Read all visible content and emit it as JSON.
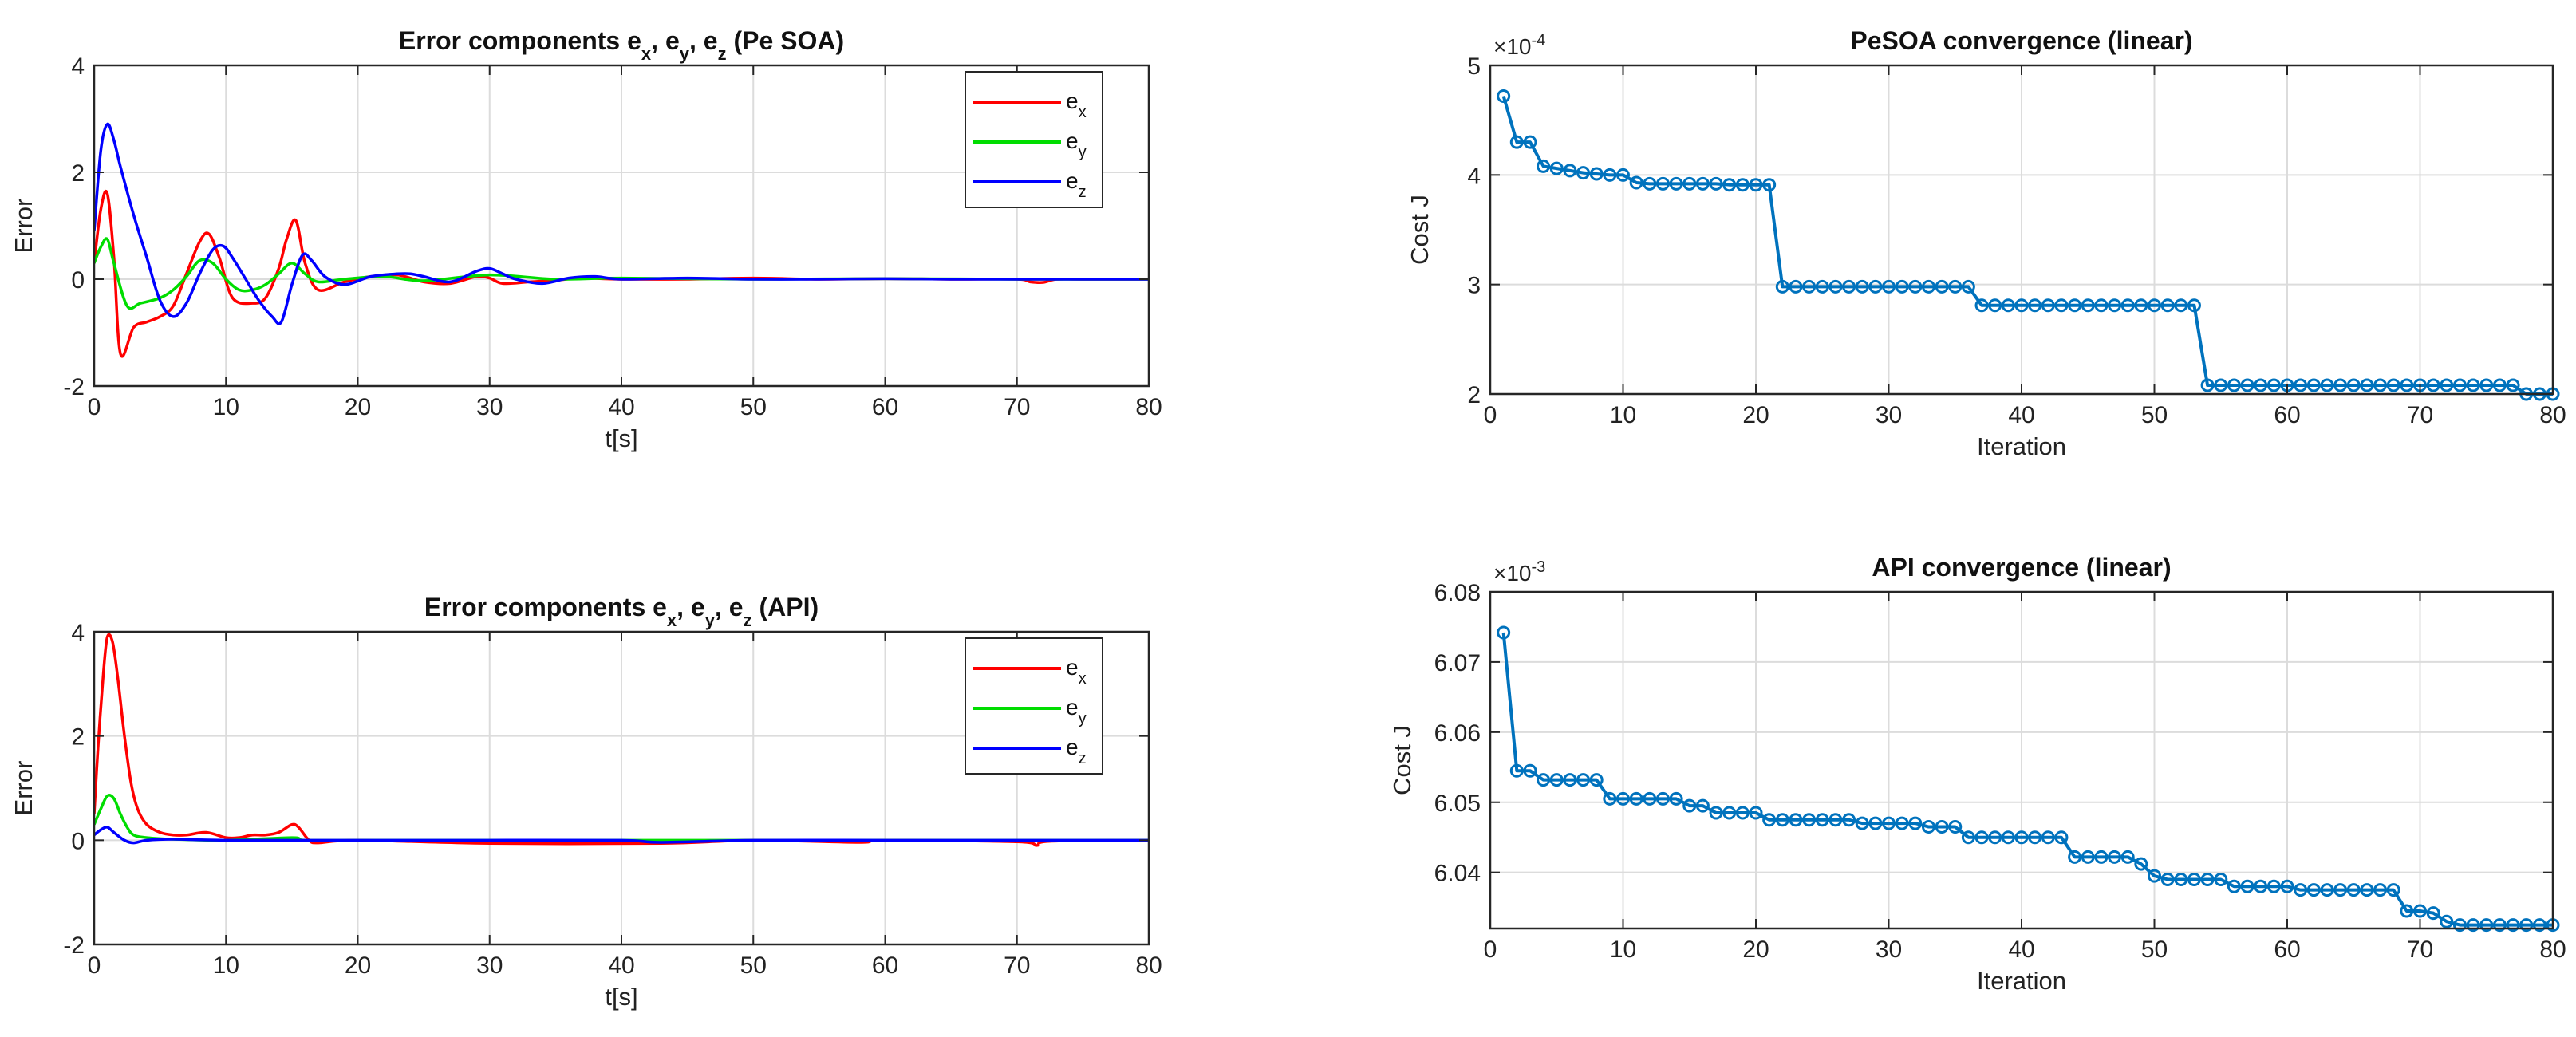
{
  "chart_data": [
    {
      "id": "p1",
      "type": "line",
      "title": "Error components e_x, e_y, e_z (PeSOA)",
      "title_parts": [
        "Error components ",
        "e",
        "x",
        ", ",
        "e",
        "y",
        ", ",
        "e",
        "z",
        " (Pe SOA)"
      ],
      "xlabel": "t[s]",
      "ylabel": "Error",
      "xlim": [
        0,
        80
      ],
      "ylim": [
        -2,
        4
      ],
      "xticks": [
        0,
        10,
        20,
        30,
        40,
        50,
        60,
        70,
        80
      ],
      "yticks": [
        -2,
        0,
        2,
        4
      ],
      "grid": true,
      "legend": "top-right",
      "series": [
        {
          "name": "e_x",
          "label_base": "e",
          "label_sub": "x",
          "color": "#ff0000",
          "x": [
            0,
            0.5,
            1,
            1.5,
            2,
            3,
            4,
            5,
            6,
            7,
            8,
            8.7,
            9.5,
            10.5,
            12,
            13,
            14,
            14.6,
            15.3,
            16,
            17,
            19,
            21,
            23,
            25,
            27,
            29,
            30,
            31,
            33,
            35,
            37,
            40,
            45,
            50,
            55,
            60,
            65,
            70,
            71,
            72,
            73,
            75,
            80
          ],
          "y": [
            0.3,
            1.3,
            1.6,
            0.4,
            -1.4,
            -0.9,
            -0.8,
            -0.7,
            -0.5,
            0.1,
            0.7,
            0.85,
            0.4,
            -0.35,
            -0.45,
            -0.35,
            0.2,
            0.75,
            1.1,
            0.3,
            -0.2,
            -0.05,
            0.05,
            0.08,
            -0.05,
            -0.08,
            0.05,
            0.02,
            -0.08,
            -0.05,
            -0.02,
            0.02,
            0.0,
            0.0,
            0.02,
            0.0,
            0.01,
            0.0,
            0.0,
            -0.05,
            -0.06,
            0.0,
            0.0,
            0.0
          ]
        },
        {
          "name": "e_y",
          "label_base": "e",
          "label_sub": "y",
          "color": "#00dd00",
          "x": [
            0,
            0.5,
            1,
            1.5,
            2.5,
            3.5,
            5,
            6,
            7,
            8,
            9,
            10,
            11,
            12,
            13,
            14,
            15,
            16,
            17,
            19,
            22,
            25,
            30,
            35,
            40,
            50,
            60,
            70,
            80
          ],
          "y": [
            0.3,
            0.6,
            0.75,
            0.3,
            -0.5,
            -0.45,
            -0.35,
            -0.2,
            0.05,
            0.35,
            0.3,
            0.0,
            -0.2,
            -0.2,
            -0.1,
            0.1,
            0.3,
            0.1,
            -0.05,
            0.0,
            0.05,
            -0.03,
            0.08,
            0.0,
            0.02,
            0.0,
            0.01,
            0.0,
            0.0
          ]
        },
        {
          "name": "e_z",
          "label_base": "e",
          "label_sub": "z",
          "color": "#0000ff",
          "x": [
            0,
            0.5,
            1,
            1.5,
            2,
            3,
            4,
            5,
            6,
            7,
            8,
            9,
            9.8,
            10.5,
            11.5,
            12.5,
            13.5,
            14.2,
            15,
            15.8,
            16.5,
            17.5,
            19,
            21,
            23,
            24,
            25,
            27,
            29,
            30,
            31,
            32,
            34,
            36,
            38,
            40,
            45,
            50,
            55,
            60,
            65,
            70,
            80
          ],
          "y": [
            0.9,
            2.4,
            2.9,
            2.6,
            2.1,
            1.2,
            0.4,
            -0.4,
            -0.7,
            -0.45,
            0.1,
            0.55,
            0.62,
            0.4,
            0.0,
            -0.4,
            -0.7,
            -0.8,
            -0.1,
            0.45,
            0.35,
            0.05,
            -0.1,
            0.05,
            0.1,
            0.1,
            0.05,
            -0.05,
            0.15,
            0.2,
            0.1,
            0.0,
            -0.08,
            0.02,
            0.05,
            0.0,
            0.02,
            0.0,
            0.0,
            0.01,
            0.0,
            0.0,
            0.0
          ]
        }
      ]
    },
    {
      "id": "p2",
      "type": "line",
      "title": "Error components e_x, e_y, e_z (API)",
      "title_parts": [
        "Error components ",
        "e",
        "x",
        ", ",
        "e",
        "y",
        ", ",
        "e",
        "z",
        " (API)"
      ],
      "xlabel": "t[s]",
      "ylabel": "Error",
      "xlim": [
        0,
        80
      ],
      "ylim": [
        -2,
        4
      ],
      "xticks": [
        0,
        10,
        20,
        30,
        40,
        50,
        60,
        70,
        80
      ],
      "yticks": [
        -2,
        0,
        2,
        4
      ],
      "grid": true,
      "legend": "top-right",
      "series": [
        {
          "name": "e_x",
          "label_base": "e",
          "label_sub": "x",
          "color": "#ff0000",
          "x": [
            0,
            0.3,
            0.7,
            1,
            1.4,
            1.8,
            2.3,
            2.8,
            3.3,
            4,
            5,
            6,
            7,
            8.5,
            10,
            11,
            12,
            13,
            14,
            15,
            15.5,
            16.3,
            17,
            20,
            30,
            43,
            50,
            58,
            60,
            70,
            71.5,
            72.5,
            80
          ],
          "y": [
            0.5,
            1.8,
            3.2,
            3.9,
            3.8,
            3.1,
            2.0,
            1.1,
            0.6,
            0.3,
            0.15,
            0.1,
            0.1,
            0.15,
            0.05,
            0.05,
            0.1,
            0.1,
            0.15,
            0.3,
            0.25,
            0.0,
            -0.05,
            0.0,
            -0.06,
            -0.06,
            0.0,
            -0.04,
            0.0,
            -0.03,
            -0.1,
            -0.02,
            0.0
          ]
        },
        {
          "name": "e_y",
          "label_base": "e",
          "label_sub": "y",
          "color": "#00dd00",
          "x": [
            0,
            0.5,
            1,
            1.5,
            2,
            2.5,
            3,
            4,
            6,
            10,
            15,
            16,
            20,
            30,
            40,
            50,
            60,
            70,
            80
          ],
          "y": [
            0.3,
            0.6,
            0.85,
            0.8,
            0.5,
            0.25,
            0.1,
            0.05,
            0.02,
            0.0,
            0.05,
            0.0,
            0.0,
            0.0,
            0.0,
            0.0,
            0.0,
            0.0,
            0.0
          ]
        },
        {
          "name": "e_z",
          "label_base": "e",
          "label_sub": "z",
          "color": "#0000ff",
          "x": [
            0,
            0.5,
            1,
            1.5,
            2.3,
            3,
            4,
            6,
            10,
            20,
            30,
            40,
            43,
            50,
            60,
            70,
            80
          ],
          "y": [
            0.1,
            0.2,
            0.25,
            0.15,
            0.0,
            -0.05,
            0.0,
            0.02,
            0.0,
            0.0,
            0.0,
            0.0,
            -0.04,
            0.0,
            0.0,
            0.0,
            0.0
          ]
        }
      ]
    },
    {
      "id": "p3",
      "type": "line",
      "title": "PeSOA convergence (linear)",
      "xlabel": "Iteration",
      "ylabel": "Cost J",
      "xlim": [
        0,
        80
      ],
      "ylim": [
        2,
        5
      ],
      "xticks": [
        0,
        10,
        20,
        30,
        40,
        50,
        60,
        70,
        80
      ],
      "yticks": [
        2,
        3,
        4,
        5
      ],
      "exponent_base": "×10",
      "exponent_power": "-4",
      "grid": true,
      "markers": true,
      "series": [
        {
          "color": "#0072bd",
          "x": [
            1,
            2,
            3,
            4,
            5,
            6,
            7,
            8,
            9,
            10,
            11,
            12,
            13,
            14,
            15,
            16,
            17,
            18,
            19,
            20,
            21,
            22,
            23,
            24,
            25,
            26,
            27,
            28,
            29,
            30,
            31,
            32,
            33,
            34,
            35,
            36,
            37,
            38,
            39,
            40,
            41,
            42,
            43,
            44,
            45,
            46,
            47,
            48,
            49,
            50,
            51,
            52,
            53,
            54,
            55,
            56,
            57,
            58,
            59,
            60,
            61,
            62,
            63,
            64,
            65,
            66,
            67,
            68,
            69,
            70,
            71,
            72,
            73,
            74,
            75,
            76,
            77,
            78,
            79,
            80
          ],
          "y": [
            4.72,
            4.3,
            4.3,
            4.08,
            4.06,
            4.04,
            4.02,
            4.01,
            4.0,
            4.0,
            3.93,
            3.92,
            3.92,
            3.92,
            3.92,
            3.92,
            3.92,
            3.91,
            3.91,
            3.91,
            3.91,
            2.98,
            2.98,
            2.98,
            2.98,
            2.98,
            2.98,
            2.98,
            2.98,
            2.98,
            2.98,
            2.98,
            2.98,
            2.98,
            2.98,
            2.98,
            2.81,
            2.81,
            2.81,
            2.81,
            2.81,
            2.81,
            2.81,
            2.81,
            2.81,
            2.81,
            2.81,
            2.81,
            2.81,
            2.81,
            2.81,
            2.81,
            2.81,
            2.08,
            2.08,
            2.08,
            2.08,
            2.08,
            2.08,
            2.08,
            2.08,
            2.08,
            2.08,
            2.08,
            2.08,
            2.08,
            2.08,
            2.08,
            2.08,
            2.08,
            2.08,
            2.08,
            2.08,
            2.08,
            2.08,
            2.08,
            2.08,
            2.0,
            2.0,
            2.0
          ]
        }
      ]
    },
    {
      "id": "p4",
      "type": "line",
      "title": "API convergence (linear)",
      "xlabel": "Iteration",
      "ylabel": "Cost J",
      "xlim": [
        0,
        80
      ],
      "ylim": [
        6.032,
        6.08
      ],
      "xticks": [
        0,
        10,
        20,
        30,
        40,
        50,
        60,
        70,
        80
      ],
      "yticks": [
        6.04,
        6.05,
        6.06,
        6.07,
        6.08
      ],
      "ytick_labels": [
        "6.04",
        "6.05",
        "6.06",
        "6.07",
        "6.08"
      ],
      "exponent_base": "×10",
      "exponent_power": "-3",
      "grid": true,
      "markers": true,
      "series": [
        {
          "color": "#0072bd",
          "x": [
            1,
            2,
            3,
            4,
            5,
            6,
            7,
            8,
            9,
            10,
            11,
            12,
            13,
            14,
            15,
            16,
            17,
            18,
            19,
            20,
            21,
            22,
            23,
            24,
            25,
            26,
            27,
            28,
            29,
            30,
            31,
            32,
            33,
            34,
            35,
            36,
            37,
            38,
            39,
            40,
            41,
            42,
            43,
            44,
            45,
            46,
            47,
            48,
            49,
            50,
            51,
            52,
            53,
            54,
            55,
            56,
            57,
            58,
            59,
            60,
            61,
            62,
            63,
            64,
            65,
            66,
            67,
            68,
            69,
            70,
            71,
            72,
            73,
            74,
            75,
            76,
            77,
            78,
            79,
            80
          ],
          "y": [
            6.0742,
            6.0545,
            6.0545,
            6.0532,
            6.0532,
            6.0532,
            6.0532,
            6.0532,
            6.0505,
            6.0505,
            6.0505,
            6.0505,
            6.0505,
            6.0505,
            6.0495,
            6.0495,
            6.0485,
            6.0485,
            6.0485,
            6.0485,
            6.0475,
            6.0475,
            6.0475,
            6.0475,
            6.0475,
            6.0475,
            6.0475,
            6.047,
            6.047,
            6.047,
            6.047,
            6.047,
            6.0465,
            6.0465,
            6.0465,
            6.045,
            6.045,
            6.045,
            6.045,
            6.045,
            6.045,
            6.045,
            6.045,
            6.0422,
            6.0422,
            6.0422,
            6.0422,
            6.0422,
            6.0412,
            6.0395,
            6.039,
            6.039,
            6.039,
            6.039,
            6.039,
            6.038,
            6.038,
            6.038,
            6.038,
            6.038,
            6.0375,
            6.0375,
            6.0375,
            6.0375,
            6.0375,
            6.0375,
            6.0375,
            6.0375,
            6.0345,
            6.0345,
            6.0342,
            6.033,
            6.0325,
            6.0325,
            6.0325,
            6.0325,
            6.0325,
            6.0325,
            6.0325,
            6.0325
          ]
        }
      ]
    }
  ]
}
